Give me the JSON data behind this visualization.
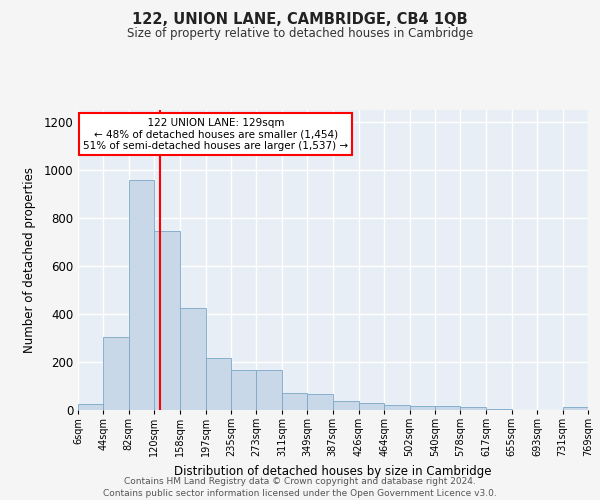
{
  "title": "122, UNION LANE, CAMBRIDGE, CB4 1QB",
  "subtitle": "Size of property relative to detached houses in Cambridge",
  "xlabel": "Distribution of detached houses by size in Cambridge",
  "ylabel": "Number of detached properties",
  "annotation_line1": "122 UNION LANE: 129sqm",
  "annotation_line2": "← 48% of detached houses are smaller (1,454)",
  "annotation_line3": "51% of semi-detached houses are larger (1,537) →",
  "footer1": "Contains HM Land Registry data © Crown copyright and database right 2024.",
  "footer2": "Contains public sector information licensed under the Open Government Licence v3.0.",
  "bar_color": "#c8d8e8",
  "bar_edge_color": "#7aa8c8",
  "background_color": "#e8eef5",
  "grid_color": "#ffffff",
  "fig_background": "#f5f5f5",
  "red_line_x": 129,
  "bin_edges": [
    6,
    44,
    82,
    120,
    158,
    197,
    235,
    273,
    311,
    349,
    387,
    426,
    464,
    502,
    540,
    578,
    617,
    655,
    693,
    731,
    769
  ],
  "bar_heights": [
    25,
    305,
    960,
    745,
    425,
    215,
    165,
    165,
    70,
    65,
    38,
    28,
    20,
    18,
    15,
    12,
    5,
    2,
    2,
    12
  ],
  "ylim": [
    0,
    1250
  ],
  "yticks": [
    0,
    200,
    400,
    600,
    800,
    1000,
    1200
  ]
}
